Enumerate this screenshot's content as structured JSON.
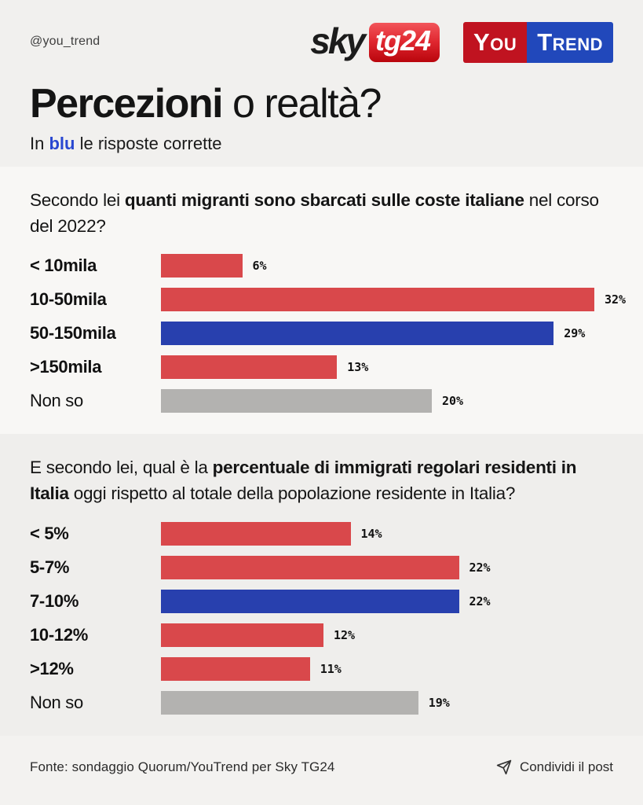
{
  "colors": {
    "red": "#d9484b",
    "blue": "#2840ae",
    "gray": "#b3b2b0",
    "text_blue": "#2947d1"
  },
  "header": {
    "handle": "@you_trend",
    "sky_logo": {
      "sky": "sky",
      "tg24": "tg24"
    },
    "youtrend_logo": {
      "you": "You",
      "trend": "Trend"
    }
  },
  "title": {
    "bold": "Percezioni",
    "regular": " o realtà?"
  },
  "subtitle": {
    "pre": "In ",
    "highlight": "blu",
    "post": " le risposte corrette"
  },
  "chart_data": [
    {
      "type": "bar",
      "orientation": "horizontal",
      "unit": "%",
      "xlim": [
        0,
        32
      ],
      "question_segments": [
        {
          "text": "Secondo lei ",
          "bold": false
        },
        {
          "text": "quanti migranti sono sbarcati sulle coste italiane",
          "bold": true
        },
        {
          "text": " nel corso del 2022?",
          "bold": false
        }
      ],
      "categories": [
        "< 10mila",
        "10-50mila",
        "50-150mila",
        ">150mila",
        "Non so"
      ],
      "values": [
        6,
        32,
        29,
        13,
        20
      ],
      "items": [
        {
          "label": "< 10mila",
          "value": 6,
          "color": "red",
          "bold_label": true,
          "correct": false
        },
        {
          "label": "10-50mila",
          "value": 32,
          "color": "red",
          "bold_label": true,
          "correct": false
        },
        {
          "label": "50-150mila",
          "value": 29,
          "color": "blue",
          "bold_label": true,
          "correct": true
        },
        {
          "label": ">150mila",
          "value": 13,
          "color": "red",
          "bold_label": true,
          "correct": false
        },
        {
          "label": "Non so",
          "value": 20,
          "color": "gray",
          "bold_label": false,
          "correct": false
        }
      ]
    },
    {
      "type": "bar",
      "orientation": "horizontal",
      "unit": "%",
      "xlim": [
        0,
        32
      ],
      "question_segments": [
        {
          "text": "E secondo lei, qual è la ",
          "bold": false
        },
        {
          "text": "percentuale di immigrati regolari residenti in Italia",
          "bold": true
        },
        {
          "text": " oggi rispetto al totale della popolazione residente in Italia?",
          "bold": false
        }
      ],
      "categories": [
        "< 5%",
        "5-7%",
        "7-10%",
        "10-12%",
        ">12%",
        "Non so"
      ],
      "values": [
        14,
        22,
        22,
        12,
        11,
        19
      ],
      "items": [
        {
          "label": "< 5%",
          "value": 14,
          "color": "red",
          "bold_label": true,
          "correct": false
        },
        {
          "label": "5-7%",
          "value": 22,
          "color": "red",
          "bold_label": true,
          "correct": false
        },
        {
          "label": "7-10%",
          "value": 22,
          "color": "blue",
          "bold_label": true,
          "correct": true
        },
        {
          "label": "10-12%",
          "value": 12,
          "color": "red",
          "bold_label": true,
          "correct": false
        },
        {
          "label": ">12%",
          "value": 11,
          "color": "red",
          "bold_label": true,
          "correct": false
        },
        {
          "label": "Non so",
          "value": 19,
          "color": "gray",
          "bold_label": false,
          "correct": false
        }
      ]
    }
  ],
  "footer": {
    "source": "Fonte: sondaggio Quorum/YouTrend per Sky TG24",
    "share_label": "Condividi il post"
  }
}
